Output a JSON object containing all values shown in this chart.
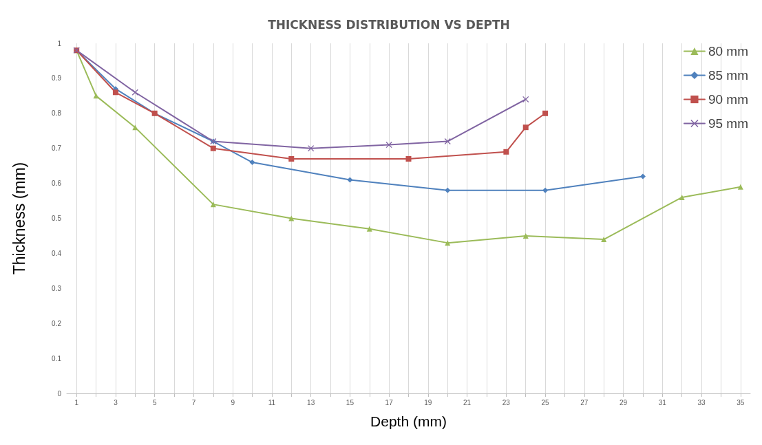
{
  "chart_data": {
    "type": "line",
    "title": "THICKNESS DISTRIBUTION VS DEPTH",
    "xlabel": "Depth (mm)",
    "ylabel": "Thickness (mm)",
    "xlim": [
      0.5,
      35.5
    ],
    "xticks": [
      1,
      {
        "value": 2,
        "label": null
      },
      3,
      {
        "value": 4,
        "label": null
      },
      5,
      {
        "value": 6,
        "label": null
      },
      7,
      {
        "value": 8,
        "label": null
      },
      9,
      {
        "value": 10,
        "label": null
      },
      11,
      {
        "value": 12,
        "label": null
      },
      13,
      {
        "value": 14,
        "label": null
      },
      15,
      {
        "value": 16,
        "label": null
      },
      17,
      {
        "value": 18,
        "label": null
      },
      19,
      {
        "value": 20,
        "label": null
      },
      21,
      {
        "value": 22,
        "label": null
      },
      23,
      {
        "value": 24,
        "label": null
      },
      25,
      {
        "value": 26,
        "label": null
      },
      27,
      {
        "value": 28,
        "label": null
      },
      29,
      {
        "value": 30,
        "label": null
      },
      31,
      {
        "value": 32,
        "label": null
      },
      33,
      {
        "value": 34,
        "label": null
      },
      35
    ],
    "ylim": [
      0,
      1
    ],
    "yticks": [
      0,
      0.1,
      0.2,
      0.3,
      0.4,
      0.5,
      0.6,
      0.7,
      0.8,
      0.9,
      1
    ],
    "grid": "x",
    "legend": "top right",
    "line_style": "solid",
    "series": [
      {
        "name": "80 mm",
        "color": "#9bbb59",
        "marker": "triangle",
        "x": [
          1,
          2,
          4,
          8,
          12,
          16,
          20,
          24,
          28,
          32,
          35
        ],
        "values": [
          0.98,
          0.85,
          0.76,
          0.54,
          0.5,
          0.47,
          0.43,
          0.45,
          0.44,
          0.56,
          0.59
        ]
      },
      {
        "name": "85 mm",
        "color": "#4f81bd",
        "marker": "diamond",
        "x": [
          1,
          3,
          5,
          8,
          10,
          15,
          20,
          25,
          30
        ],
        "values": [
          0.98,
          0.87,
          0.8,
          0.72,
          0.66,
          0.61,
          0.58,
          0.58,
          0.62
        ]
      },
      {
        "name": "90 mm",
        "color": "#c0504d",
        "marker": "square",
        "x": [
          1,
          3,
          5,
          8,
          12,
          18,
          23,
          24,
          25
        ],
        "values": [
          0.98,
          0.86,
          0.8,
          0.7,
          0.67,
          0.67,
          0.69,
          0.76,
          0.8
        ]
      },
      {
        "name": "95 mm",
        "color": "#8064a2",
        "marker": "cross",
        "x": [
          1,
          4,
          8,
          13,
          17,
          20,
          24
        ],
        "values": [
          0.98,
          0.86,
          0.72,
          0.7,
          0.71,
          0.72,
          0.84
        ]
      }
    ]
  }
}
